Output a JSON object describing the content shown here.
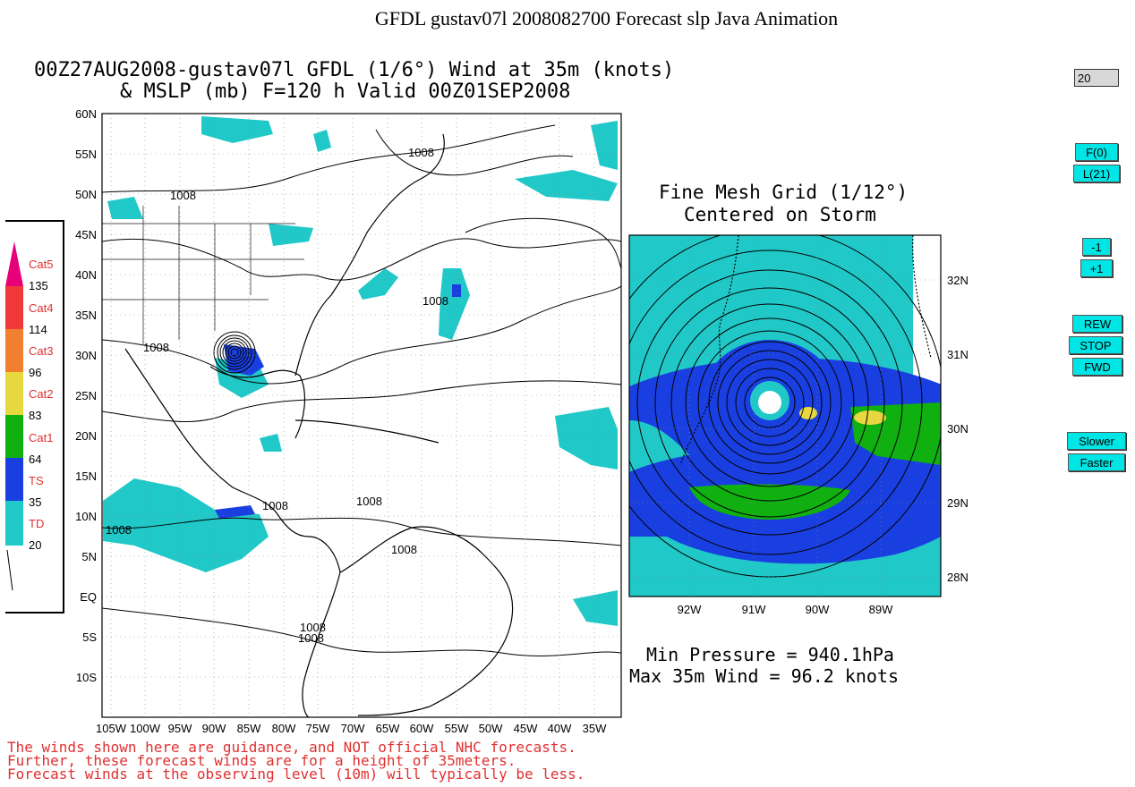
{
  "page_title": "GFDL gustav07l 2008082700 Forecast slp Java Animation",
  "main_map": {
    "title_line1": "00Z27AUG2008-gustav07l GFDL (1/6°) Wind at 35m (knots)",
    "title_line2": "& MSLP (mb) F=120 h Valid 00Z01SEP2008",
    "lat_labels": [
      "60N",
      "55N",
      "50N",
      "45N",
      "40N",
      "35N",
      "30N",
      "25N",
      "20N",
      "15N",
      "10N",
      "5N",
      "EQ",
      "5S",
      "10S"
    ],
    "lon_labels": [
      "105W",
      "100W",
      "95W",
      "90W",
      "85W",
      "80W",
      "75W",
      "70W",
      "65W",
      "60W",
      "55W",
      "50W",
      "45W",
      "40W",
      "35W"
    ],
    "isobar_labels": [
      "1008",
      "1008",
      "1008",
      "1008",
      "1008",
      "1008",
      "1008",
      "1008",
      "1008",
      "1008"
    ]
  },
  "fine_mesh": {
    "title_line1": "Fine Mesh Grid (1/12°)",
    "title_line2": "Centered on Storm",
    "lat_labels": [
      "32N",
      "31N",
      "30N",
      "29N",
      "28N"
    ],
    "lon_labels": [
      "92W",
      "91W",
      "90W",
      "89W"
    ]
  },
  "stats": {
    "line1": "Min Pressure = 940.1hPa",
    "line2": "Max 35m Wind = 96.2 knots"
  },
  "legend": {
    "categories": [
      {
        "name": "Cat5",
        "color": "#e8007a"
      },
      {
        "name": "Cat4",
        "color": "#f03a3a"
      },
      {
        "name": "Cat3",
        "color": "#f08030"
      },
      {
        "name": "Cat2",
        "color": "#e8d840"
      },
      {
        "name": "Cat1",
        "color": "#10b010"
      },
      {
        "name": "TS",
        "color": "#1a3fe0"
      },
      {
        "name": "TD",
        "color": "#20c8c8"
      }
    ],
    "thresholds": [
      "135",
      "114",
      "96",
      "83",
      "64",
      "35",
      "20"
    ]
  },
  "disclaimer": {
    "line1": "The winds shown here are guidance, and NOT official NHC forecasts.",
    "line2": "Further, these forecast winds are for a height of 35meters.",
    "line3": "Forecast winds at the observing level (10m) will typically be less."
  },
  "controls": {
    "frame_value": "20",
    "first_label": "F(0)",
    "last_label": "L(21)",
    "minus_label": "-1",
    "plus_label": "+1",
    "rew_label": "REW",
    "stop_label": "STOP",
    "fwd_label": "FWD",
    "slower_label": "Slower",
    "faster_label": "Faster"
  },
  "colors": {
    "td": "#20c8c8",
    "ts": "#1a3fe0",
    "cat1": "#10b010",
    "cat2": "#e8d840"
  }
}
